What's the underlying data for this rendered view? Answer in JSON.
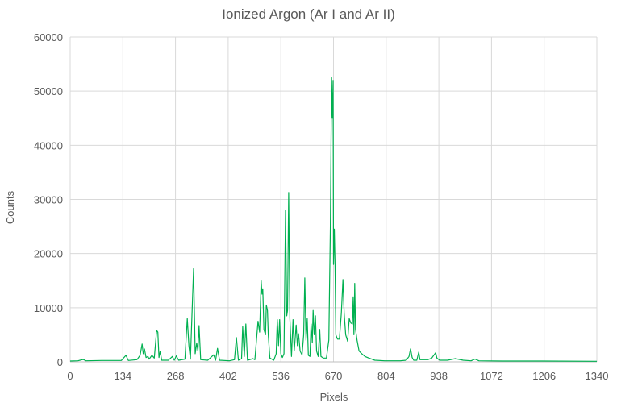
{
  "chart_data": {
    "type": "line",
    "title": "Ionized Argon (Ar I and Ar II)",
    "xlabel": "Pixels",
    "ylabel": "Counts",
    "xlim": [
      0,
      1340
    ],
    "ylim": [
      0,
      60000
    ],
    "xticks": [
      "0",
      "134",
      "268",
      "402",
      "536",
      "670",
      "804",
      "938",
      "1072",
      "1206",
      "1340"
    ],
    "yticks": [
      "0",
      "10000",
      "20000",
      "30000",
      "40000",
      "50000",
      "60000"
    ],
    "grid": true,
    "legend": "none",
    "color": "#00B050",
    "series": [
      {
        "x": [
          0,
          20,
          33,
          40,
          80,
          130,
          142,
          148,
          170,
          178,
          183,
          186,
          189,
          193,
          198,
          201,
          208,
          214,
          220,
          223,
          226,
          229,
          233,
          250,
          260,
          265,
          270,
          276,
          292,
          298,
          302,
          306,
          314,
          318,
          322,
          325,
          328,
          332,
          350,
          365,
          370,
          375,
          380,
          405,
          418,
          423,
          428,
          436,
          439,
          443,
          447,
          451,
          465,
          470,
          478,
          482,
          486,
          488,
          490,
          493,
          497,
          499,
          502,
          504,
          508,
          518,
          524,
          527,
          530,
          533,
          536,
          540,
          544,
          548,
          551,
          553,
          556,
          559,
          563,
          567,
          570,
          575,
          578,
          581,
          585,
          590,
          594,
          597,
          600,
          603,
          606,
          610,
          613,
          616,
          618,
          621,
          624,
          627,
          631,
          635,
          638,
          644,
          652,
          658,
          662,
          665,
          667,
          669,
          670,
          672,
          674,
          676,
          680,
          685,
          690,
          694,
          697,
          701,
          706,
          710,
          714,
          718,
          720,
          722,
          724,
          726,
          730,
          735,
          742,
          750,
          760,
          775,
          800,
          840,
          855,
          862,
          866,
          870,
          874,
          882,
          887,
          890,
          910,
          920,
          925,
          930,
          933,
          940,
          960,
          980,
          1000,
          1020,
          1030,
          1040,
          1100,
          1200,
          1340
        ],
        "y": [
          150,
          200,
          450,
          200,
          250,
          250,
          1200,
          250,
          400,
          1200,
          3300,
          1500,
          2400,
          800,
          1000,
          500,
          1200,
          700,
          5800,
          5500,
          800,
          2000,
          300,
          300,
          1000,
          300,
          1100,
          300,
          500,
          8000,
          3000,
          500,
          17200,
          1500,
          3500,
          2000,
          6700,
          400,
          300,
          1300,
          300,
          2500,
          300,
          200,
          400,
          4500,
          300,
          600,
          6500,
          1000,
          7000,
          300,
          600,
          400,
          7500,
          5500,
          15000,
          12500,
          13500,
          6000,
          5000,
          10500,
          9500,
          5000,
          700,
          300,
          1500,
          7800,
          3000,
          7800,
          1500,
          800,
          1500,
          28000,
          8500,
          9500,
          31300,
          8000,
          1000,
          7800,
          2000,
          6800,
          3000,
          5200,
          2000,
          1300,
          5000,
          15500,
          4000,
          8000,
          1200,
          1000,
          7000,
          3500,
          9500,
          5000,
          8500,
          2000,
          1000,
          6000,
          1000,
          700,
          700,
          4000,
          25000,
          52500,
          45000,
          52000,
          18000,
          24500,
          18000,
          5000,
          4200,
          4200,
          9000,
          15200,
          9000,
          5000,
          3800,
          8000,
          7200,
          7000,
          12000,
          5000,
          14500,
          6000,
          4000,
          2000,
          1500,
          1000,
          700,
          300,
          200,
          200,
          300,
          1000,
          2400,
          800,
          300,
          300,
          1800,
          400,
          400,
          700,
          1200,
          1700,
          700,
          300,
          300,
          600,
          300,
          200,
          500,
          200,
          150,
          150,
          100
        ]
      }
    ]
  }
}
